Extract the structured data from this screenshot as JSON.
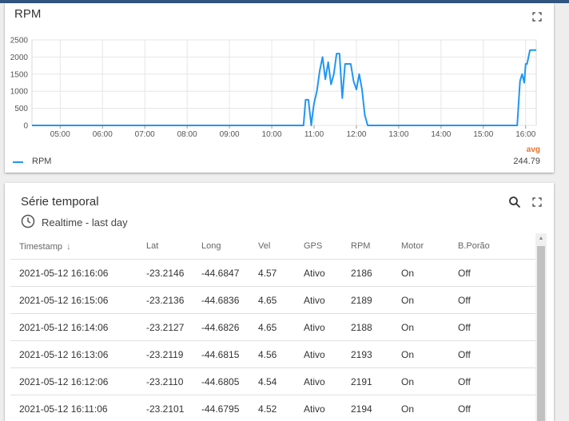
{
  "rpm_panel": {
    "title": "RPM",
    "legend": {
      "series_name": "RPM",
      "color": "#2196f3",
      "avg_label": "avg",
      "avg_value": "244.79"
    }
  },
  "chart_data": {
    "type": "line",
    "title": "RPM",
    "xlabel": "",
    "ylabel": "",
    "ylim": [
      0,
      2500
    ],
    "xlim": [
      "04:20",
      "16:15"
    ],
    "x_tick_labels": [
      "05:00",
      "06:00",
      "07:00",
      "08:00",
      "09:00",
      "10:00",
      "11:00",
      "12:00",
      "13:00",
      "14:00",
      "15:00",
      "16:00"
    ],
    "y_tick_labels": [
      "0",
      "500",
      "1000",
      "1500",
      "2000",
      "2500"
    ],
    "grid": true,
    "legend_position": "bottom-left",
    "series": [
      {
        "name": "RPM",
        "color": "#2196f3",
        "x": [
          "04:20",
          "10:45",
          "10:48",
          "10:52",
          "10:56",
          "10:58",
          "11:00",
          "11:04",
          "11:08",
          "11:12",
          "11:16",
          "11:20",
          "11:24",
          "11:28",
          "11:32",
          "11:36",
          "11:40",
          "11:44",
          "11:48",
          "11:52",
          "11:56",
          "12:00",
          "12:04",
          "12:08",
          "12:12",
          "12:16",
          "12:20",
          "12:24",
          "12:28",
          "12:30",
          "15:48",
          "15:52",
          "15:55",
          "15:58",
          "16:00",
          "16:02",
          "16:06",
          "16:08",
          "16:12",
          "16:15"
        ],
        "values": [
          0,
          0,
          750,
          750,
          0,
          350,
          650,
          1000,
          1600,
          2000,
          1350,
          1850,
          1200,
          1500,
          2100,
          2100,
          800,
          1800,
          1800,
          1800,
          1300,
          1050,
          1500,
          1050,
          300,
          0,
          0,
          0,
          0,
          0,
          0,
          1300,
          1500,
          1250,
          1800,
          1800,
          2200,
          2200,
          2200,
          2200
        ]
      }
    ]
  },
  "series_panel": {
    "title": "Série temporal",
    "subtitle": "Realtime - last day",
    "columns": [
      "Timestamp",
      "Lat",
      "Long",
      "Vel",
      "GPS",
      "RPM",
      "Motor",
      "B.Porão"
    ],
    "rows": [
      [
        "2021-05-12 16:16:06",
        "-23.2146",
        "-44.6847",
        "4.57",
        "Ativo",
        "2186",
        "On",
        "Off"
      ],
      [
        "2021-05-12 16:15:06",
        "-23.2136",
        "-44.6836",
        "4.65",
        "Ativo",
        "2189",
        "On",
        "Off"
      ],
      [
        "2021-05-12 16:14:06",
        "-23.2127",
        "-44.6826",
        "4.65",
        "Ativo",
        "2188",
        "On",
        "Off"
      ],
      [
        "2021-05-12 16:13:06",
        "-23.2119",
        "-44.6815",
        "4.56",
        "Ativo",
        "2193",
        "On",
        "Off"
      ],
      [
        "2021-05-12 16:12:06",
        "-23.2110",
        "-44.6805",
        "4.54",
        "Ativo",
        "2191",
        "On",
        "Off"
      ],
      [
        "2021-05-12 16:11:06",
        "-23.2101",
        "-44.6795",
        "4.52",
        "Ativo",
        "2194",
        "On",
        "Off"
      ]
    ]
  }
}
